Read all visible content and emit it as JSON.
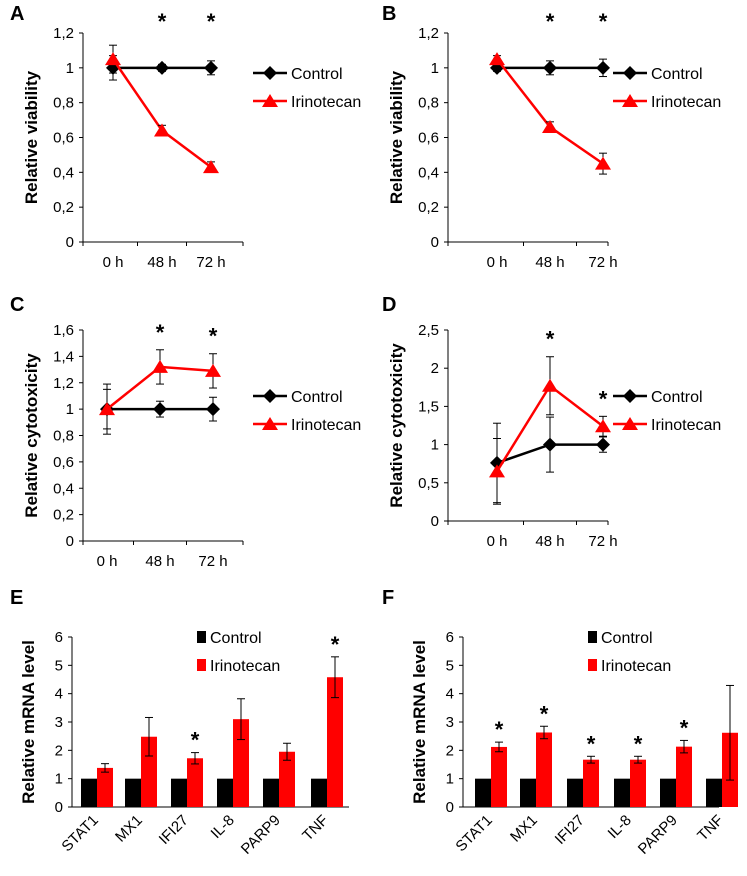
{
  "colors": {
    "control": "#000000",
    "irinotecan": "#ff0000",
    "error": "#000000",
    "axis": "#000000"
  },
  "chart_data": [
    {
      "id": "A",
      "panel_label": "A",
      "type": "line",
      "ylabel": "Relative viability",
      "ylim": [
        0,
        1.2
      ],
      "yticks": [
        0,
        0.2,
        0.4,
        0.6,
        0.8,
        1,
        1.2
      ],
      "ytick_labels": [
        "0",
        "0,2",
        "0,4",
        "0,6",
        "0,8",
        "1",
        "1,2"
      ],
      "categories": [
        "0 h",
        "48 h",
        "72 h"
      ],
      "series": [
        {
          "name": "Control",
          "color": "#000000",
          "marker": "diamond",
          "values": [
            1.0,
            1.0,
            1.0
          ],
          "errors": [
            0.07,
            0.02,
            0.04
          ]
        },
        {
          "name": "Irinotecan",
          "color": "#ff0000",
          "marker": "triangle",
          "values": [
            1.05,
            0.64,
            0.43
          ],
          "errors": [
            0.08,
            0.03,
            0.03
          ]
        }
      ],
      "significance": [
        "",
        "*",
        "*"
      ]
    },
    {
      "id": "B",
      "panel_label": "B",
      "type": "line",
      "ylabel": "Relative viability",
      "ylim": [
        0,
        1.2
      ],
      "yticks": [
        0,
        0.2,
        0.4,
        0.6,
        0.8,
        1,
        1.2
      ],
      "ytick_labels": [
        "0",
        "0,2",
        "0,4",
        "0,6",
        "0,8",
        "1",
        "1,2"
      ],
      "categories": [
        "0 h",
        "48 h",
        "72 h"
      ],
      "series": [
        {
          "name": "Control",
          "color": "#000000",
          "marker": "diamond",
          "values": [
            1.0,
            1.0,
            1.0
          ],
          "errors": [
            0.02,
            0.04,
            0.05
          ]
        },
        {
          "name": "Irinotecan",
          "color": "#ff0000",
          "marker": "triangle",
          "values": [
            1.05,
            0.66,
            0.45
          ],
          "errors": [
            0.02,
            0.03,
            0.06
          ]
        }
      ],
      "significance": [
        "",
        "*",
        "*"
      ]
    },
    {
      "id": "C",
      "panel_label": "C",
      "type": "line",
      "ylabel": "Relative cytotoxicity",
      "ylim": [
        0,
        1.6
      ],
      "yticks": [
        0,
        0.2,
        0.4,
        0.6,
        0.8,
        1,
        1.2,
        1.4,
        1.6
      ],
      "ytick_labels": [
        "0",
        "0,2",
        "0,4",
        "0,6",
        "0,8",
        "1",
        "1,2",
        "1,4",
        "1,6"
      ],
      "categories": [
        "0 h",
        "48 h",
        "72 h"
      ],
      "series": [
        {
          "name": "Control",
          "color": "#000000",
          "marker": "diamond",
          "values": [
            1.0,
            1.0,
            1.0
          ],
          "errors": [
            0.15,
            0.06,
            0.09
          ]
        },
        {
          "name": "Irinotecan",
          "color": "#ff0000",
          "marker": "triangle",
          "values": [
            1.0,
            1.32,
            1.29
          ],
          "errors": [
            0.19,
            0.13,
            0.13
          ]
        }
      ],
      "significance": [
        "",
        "*",
        "*"
      ]
    },
    {
      "id": "D",
      "panel_label": "D",
      "type": "line",
      "ylabel": "Relative cytotoxicity",
      "ylim": [
        0,
        2.5
      ],
      "yticks": [
        0,
        0.5,
        1,
        1.5,
        2,
        2.5
      ],
      "ytick_labels": [
        "0",
        "0,5",
        "1",
        "1,5",
        "2",
        "2,5"
      ],
      "categories": [
        "0 h",
        "48 h",
        "72 h"
      ],
      "series": [
        {
          "name": "Control",
          "color": "#000000",
          "marker": "diamond",
          "values": [
            0.76,
            1.0,
            1.0
          ],
          "errors": [
            0.52,
            0.36,
            0.1
          ]
        },
        {
          "name": "Irinotecan",
          "color": "#ff0000",
          "marker": "triangle",
          "values": [
            0.65,
            1.77,
            1.24
          ],
          "errors": [
            0.43,
            0.38,
            0.13
          ]
        }
      ],
      "significance": [
        "",
        "*",
        "*"
      ]
    },
    {
      "id": "E",
      "panel_label": "E",
      "type": "bar",
      "ylabel": "Relative mRNA level",
      "ylim": [
        0,
        6
      ],
      "yticks": [
        0,
        1,
        2,
        3,
        4,
        5,
        6
      ],
      "ytick_labels": [
        "0",
        "1",
        "2",
        "3",
        "4",
        "5",
        "6"
      ],
      "categories": [
        "STAT1",
        "MX1",
        "IFI27",
        "IL-8",
        "PARP9",
        "TNF"
      ],
      "series": [
        {
          "name": "Control",
          "color": "#000000",
          "values": [
            1,
            1,
            1,
            1,
            1,
            1
          ],
          "errors": [
            0,
            0,
            0,
            0,
            0,
            0
          ]
        },
        {
          "name": "Irinotecan",
          "color": "#ff0000",
          "values": [
            1.38,
            2.48,
            1.72,
            3.1,
            1.95,
            4.58
          ],
          "errors": [
            0.15,
            0.68,
            0.2,
            0.72,
            0.3,
            0.72
          ]
        }
      ],
      "significance": [
        "",
        "",
        "*",
        "",
        "",
        "*"
      ]
    },
    {
      "id": "F",
      "panel_label": "F",
      "type": "bar",
      "ylabel": "Relative mRNA level",
      "ylim": [
        0,
        6
      ],
      "yticks": [
        0,
        1,
        2,
        3,
        4,
        5,
        6
      ],
      "ytick_labels": [
        "0",
        "1",
        "2",
        "3",
        "4",
        "5",
        "6"
      ],
      "categories": [
        "STAT1",
        "MX1",
        "IFI27",
        "IL-8",
        "PARP9",
        "TNF"
      ],
      "series": [
        {
          "name": "Control",
          "color": "#000000",
          "values": [
            1,
            1,
            1,
            1,
            1,
            1
          ],
          "errors": [
            0,
            0,
            0,
            0,
            0,
            0
          ]
        },
        {
          "name": "Irinotecan",
          "color": "#ff0000",
          "values": [
            2.12,
            2.63,
            1.67,
            1.67,
            2.13,
            2.62
          ],
          "errors": [
            0.17,
            0.22,
            0.12,
            0.12,
            0.22,
            1.67
          ]
        }
      ],
      "significance": [
        "*",
        "*",
        "*",
        "*",
        "*",
        ""
      ]
    }
  ]
}
